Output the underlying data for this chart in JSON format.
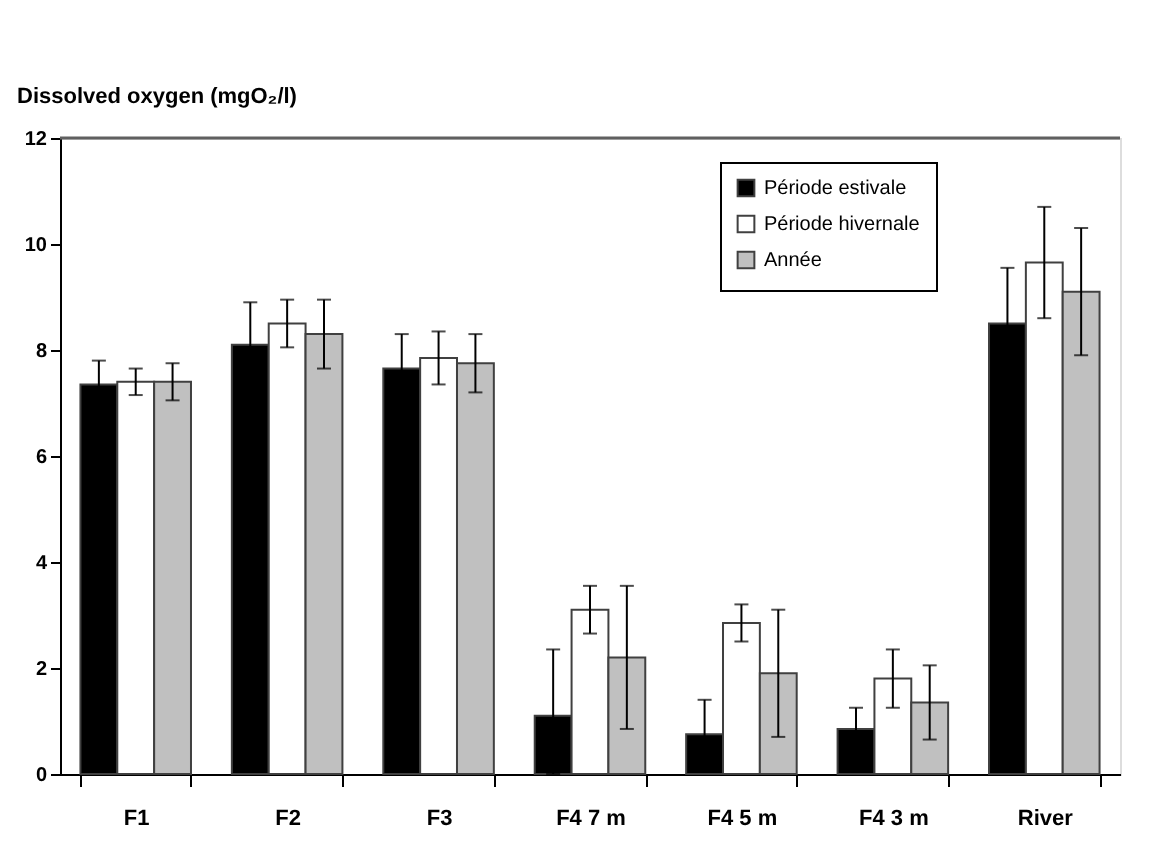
{
  "chart_data": {
    "type": "bar",
    "ylabel": "Dissolved oxygen (mgO₂/l)",
    "categories": [
      "F1",
      "F2",
      "F3",
      "F4 7 m",
      "F4 5 m",
      "F4 3 m",
      "River"
    ],
    "series": [
      {
        "name": "Période estivale",
        "color": "#000000",
        "values": [
          7.35,
          8.1,
          7.65,
          1.1,
          0.75,
          0.85,
          8.5
        ],
        "errors": [
          0.45,
          0.8,
          0.65,
          [
            0,
            2.35
          ],
          0.65,
          0.4,
          1.05
        ]
      },
      {
        "name": "Période hivernale",
        "color": "#ffffff",
        "values": [
          7.4,
          8.5,
          7.85,
          3.1,
          2.85,
          1.8,
          9.65
        ],
        "errors": [
          0.25,
          0.45,
          0.5,
          0.45,
          0.35,
          0.55,
          1.05
        ]
      },
      {
        "name": "Année",
        "color": "#c0c0c0",
        "values": [
          7.4,
          8.3,
          7.75,
          2.2,
          1.9,
          1.35,
          9.1
        ],
        "errors": [
          0.35,
          0.65,
          0.55,
          1.35,
          1.2,
          0.7,
          1.2
        ]
      }
    ],
    "ylim": [
      0,
      12
    ],
    "yticks": [
      0,
      2,
      4,
      6,
      8,
      10,
      12
    ],
    "grid": false,
    "legend": "top right"
  }
}
